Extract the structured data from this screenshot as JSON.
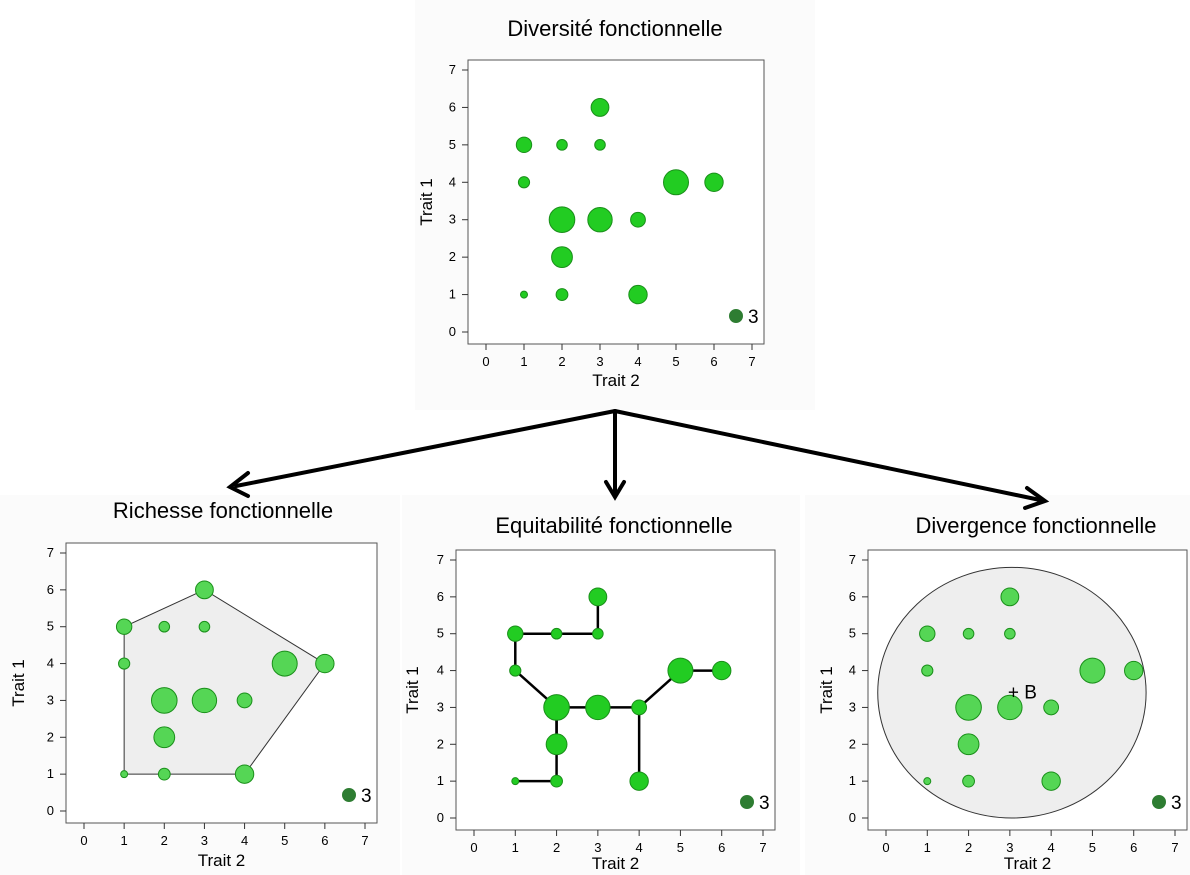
{
  "colors": {
    "point_fill": "#22cc22",
    "point_fill_light": "#55d655",
    "point_stroke": "#1a8f1a",
    "legend_fill": "#2e7d32",
    "hull_fill": "#eeeeee",
    "panel_shade": "#f4f4f4",
    "arrow": "#000000"
  },
  "chart_data": [
    {
      "type": "scatter",
      "title": "Diversité fonctionnelle",
      "xlabel": "Trait 2",
      "ylabel": "Trait 1",
      "xlim": [
        0,
        7
      ],
      "ylim": [
        0,
        7
      ],
      "xticks": [
        "0",
        "1",
        "2",
        "3",
        "4",
        "5",
        "6",
        "7"
      ],
      "yticks": [
        "0",
        "1",
        "2",
        "3",
        "4",
        "5",
        "6",
        "7"
      ],
      "legend_label": "3",
      "overlay": "none",
      "points": [
        {
          "x": 1,
          "y": 1,
          "size": 0.5
        },
        {
          "x": 2,
          "y": 1,
          "size": 1.3
        },
        {
          "x": 4,
          "y": 1,
          "size": 2.4
        },
        {
          "x": 2,
          "y": 2,
          "size": 2.8
        },
        {
          "x": 2,
          "y": 3,
          "size": 3.6
        },
        {
          "x": 3,
          "y": 3,
          "size": 3.4
        },
        {
          "x": 4,
          "y": 3,
          "size": 1.8
        },
        {
          "x": 1,
          "y": 4,
          "size": 1.2
        },
        {
          "x": 5,
          "y": 4,
          "size": 3.5
        },
        {
          "x": 6,
          "y": 4,
          "size": 2.4
        },
        {
          "x": 1,
          "y": 5,
          "size": 1.9
        },
        {
          "x": 2,
          "y": 5,
          "size": 1.1
        },
        {
          "x": 3,
          "y": 5,
          "size": 1.1
        },
        {
          "x": 3,
          "y": 6,
          "size": 2.3
        }
      ]
    },
    {
      "type": "scatter",
      "title": "Richesse fonctionnelle",
      "xlabel": "Trait 2",
      "ylabel": "Trait 1",
      "xlim": [
        0,
        7
      ],
      "ylim": [
        0,
        7
      ],
      "xticks": [
        "0",
        "1",
        "2",
        "3",
        "4",
        "5",
        "6",
        "7"
      ],
      "yticks": [
        "0",
        "1",
        "2",
        "3",
        "4",
        "5",
        "6",
        "7"
      ],
      "legend_label": "3",
      "overlay": "convex-hull",
      "hull": [
        [
          1,
          1
        ],
        [
          1,
          5
        ],
        [
          3,
          6
        ],
        [
          6,
          4
        ],
        [
          4,
          1
        ]
      ],
      "points": [
        {
          "x": 1,
          "y": 1,
          "size": 0.5
        },
        {
          "x": 2,
          "y": 1,
          "size": 1.3
        },
        {
          "x": 4,
          "y": 1,
          "size": 2.4
        },
        {
          "x": 2,
          "y": 2,
          "size": 2.8
        },
        {
          "x": 2,
          "y": 3,
          "size": 3.6
        },
        {
          "x": 3,
          "y": 3,
          "size": 3.4
        },
        {
          "x": 4,
          "y": 3,
          "size": 1.8
        },
        {
          "x": 1,
          "y": 4,
          "size": 1.2
        },
        {
          "x": 5,
          "y": 4,
          "size": 3.5
        },
        {
          "x": 6,
          "y": 4,
          "size": 2.4
        },
        {
          "x": 1,
          "y": 5,
          "size": 1.9
        },
        {
          "x": 2,
          "y": 5,
          "size": 1.1
        },
        {
          "x": 3,
          "y": 5,
          "size": 1.1
        },
        {
          "x": 3,
          "y": 6,
          "size": 2.3
        }
      ]
    },
    {
      "type": "scatter",
      "title": "Equitabilité fonctionnelle",
      "xlabel": "Trait 2",
      "ylabel": "Trait 1",
      "xlim": [
        0,
        7
      ],
      "ylim": [
        0,
        7
      ],
      "xticks": [
        "0",
        "1",
        "2",
        "3",
        "4",
        "5",
        "6",
        "7"
      ],
      "yticks": [
        "0",
        "1",
        "2",
        "3",
        "4",
        "5",
        "6",
        "7"
      ],
      "legend_label": "3",
      "overlay": "minimum-spanning-tree",
      "edges": [
        [
          [
            1,
            1
          ],
          [
            2,
            1
          ]
        ],
        [
          [
            2,
            1
          ],
          [
            2,
            3
          ]
        ],
        [
          [
            2,
            3
          ],
          [
            2,
            2
          ]
        ],
        [
          [
            2,
            3
          ],
          [
            1,
            4
          ]
        ],
        [
          [
            1,
            4
          ],
          [
            1,
            5
          ]
        ],
        [
          [
            1,
            5
          ],
          [
            2,
            5
          ]
        ],
        [
          [
            2,
            5
          ],
          [
            3,
            5
          ]
        ],
        [
          [
            3,
            5
          ],
          [
            3,
            6
          ]
        ],
        [
          [
            2,
            3
          ],
          [
            3,
            3
          ]
        ],
        [
          [
            3,
            3
          ],
          [
            4,
            3
          ]
        ],
        [
          [
            4,
            3
          ],
          [
            4,
            1
          ]
        ],
        [
          [
            4,
            3
          ],
          [
            5,
            4
          ]
        ],
        [
          [
            5,
            4
          ],
          [
            6,
            4
          ]
        ]
      ],
      "points": [
        {
          "x": 1,
          "y": 1,
          "size": 0.5
        },
        {
          "x": 2,
          "y": 1,
          "size": 1.3
        },
        {
          "x": 4,
          "y": 1,
          "size": 2.4
        },
        {
          "x": 2,
          "y": 2,
          "size": 2.8
        },
        {
          "x": 2,
          "y": 3,
          "size": 3.6
        },
        {
          "x": 3,
          "y": 3,
          "size": 3.4
        },
        {
          "x": 4,
          "y": 3,
          "size": 1.8
        },
        {
          "x": 1,
          "y": 4,
          "size": 1.2
        },
        {
          "x": 5,
          "y": 4,
          "size": 3.5
        },
        {
          "x": 6,
          "y": 4,
          "size": 2.4
        },
        {
          "x": 1,
          "y": 5,
          "size": 1.9
        },
        {
          "x": 2,
          "y": 5,
          "size": 1.1
        },
        {
          "x": 3,
          "y": 5,
          "size": 1.1
        },
        {
          "x": 3,
          "y": 6,
          "size": 2.3
        }
      ]
    },
    {
      "type": "scatter",
      "title": "Divergence fonctionnelle",
      "xlabel": "Trait 2",
      "ylabel": "Trait 1",
      "xlim": [
        0,
        7
      ],
      "ylim": [
        0,
        7
      ],
      "xticks": [
        "0",
        "1",
        "2",
        "3",
        "4",
        "5",
        "6",
        "7"
      ],
      "yticks": [
        "0",
        "1",
        "2",
        "3",
        "4",
        "5",
        "6",
        "7"
      ],
      "legend_label": "3",
      "overlay": "circle-centroid",
      "centroid": {
        "x": 3,
        "y": 3.4,
        "label": "+ B"
      },
      "circle": {
        "cx": 3.05,
        "cy": 3.4,
        "rx": 3.25,
        "ry": 3.4
      },
      "points": [
        {
          "x": 1,
          "y": 1,
          "size": 0.5
        },
        {
          "x": 2,
          "y": 1,
          "size": 1.3
        },
        {
          "x": 4,
          "y": 1,
          "size": 2.4
        },
        {
          "x": 2,
          "y": 2,
          "size": 2.8
        },
        {
          "x": 2,
          "y": 3,
          "size": 3.6
        },
        {
          "x": 3,
          "y": 3,
          "size": 3.4
        },
        {
          "x": 4,
          "y": 3,
          "size": 1.8
        },
        {
          "x": 1,
          "y": 4,
          "size": 1.2
        },
        {
          "x": 5,
          "y": 4,
          "size": 3.5
        },
        {
          "x": 6,
          "y": 4,
          "size": 2.4
        },
        {
          "x": 1,
          "y": 5,
          "size": 1.9
        },
        {
          "x": 2,
          "y": 5,
          "size": 1.1
        },
        {
          "x": 3,
          "y": 5,
          "size": 1.1
        },
        {
          "x": 3,
          "y": 6,
          "size": 2.3
        }
      ]
    }
  ]
}
